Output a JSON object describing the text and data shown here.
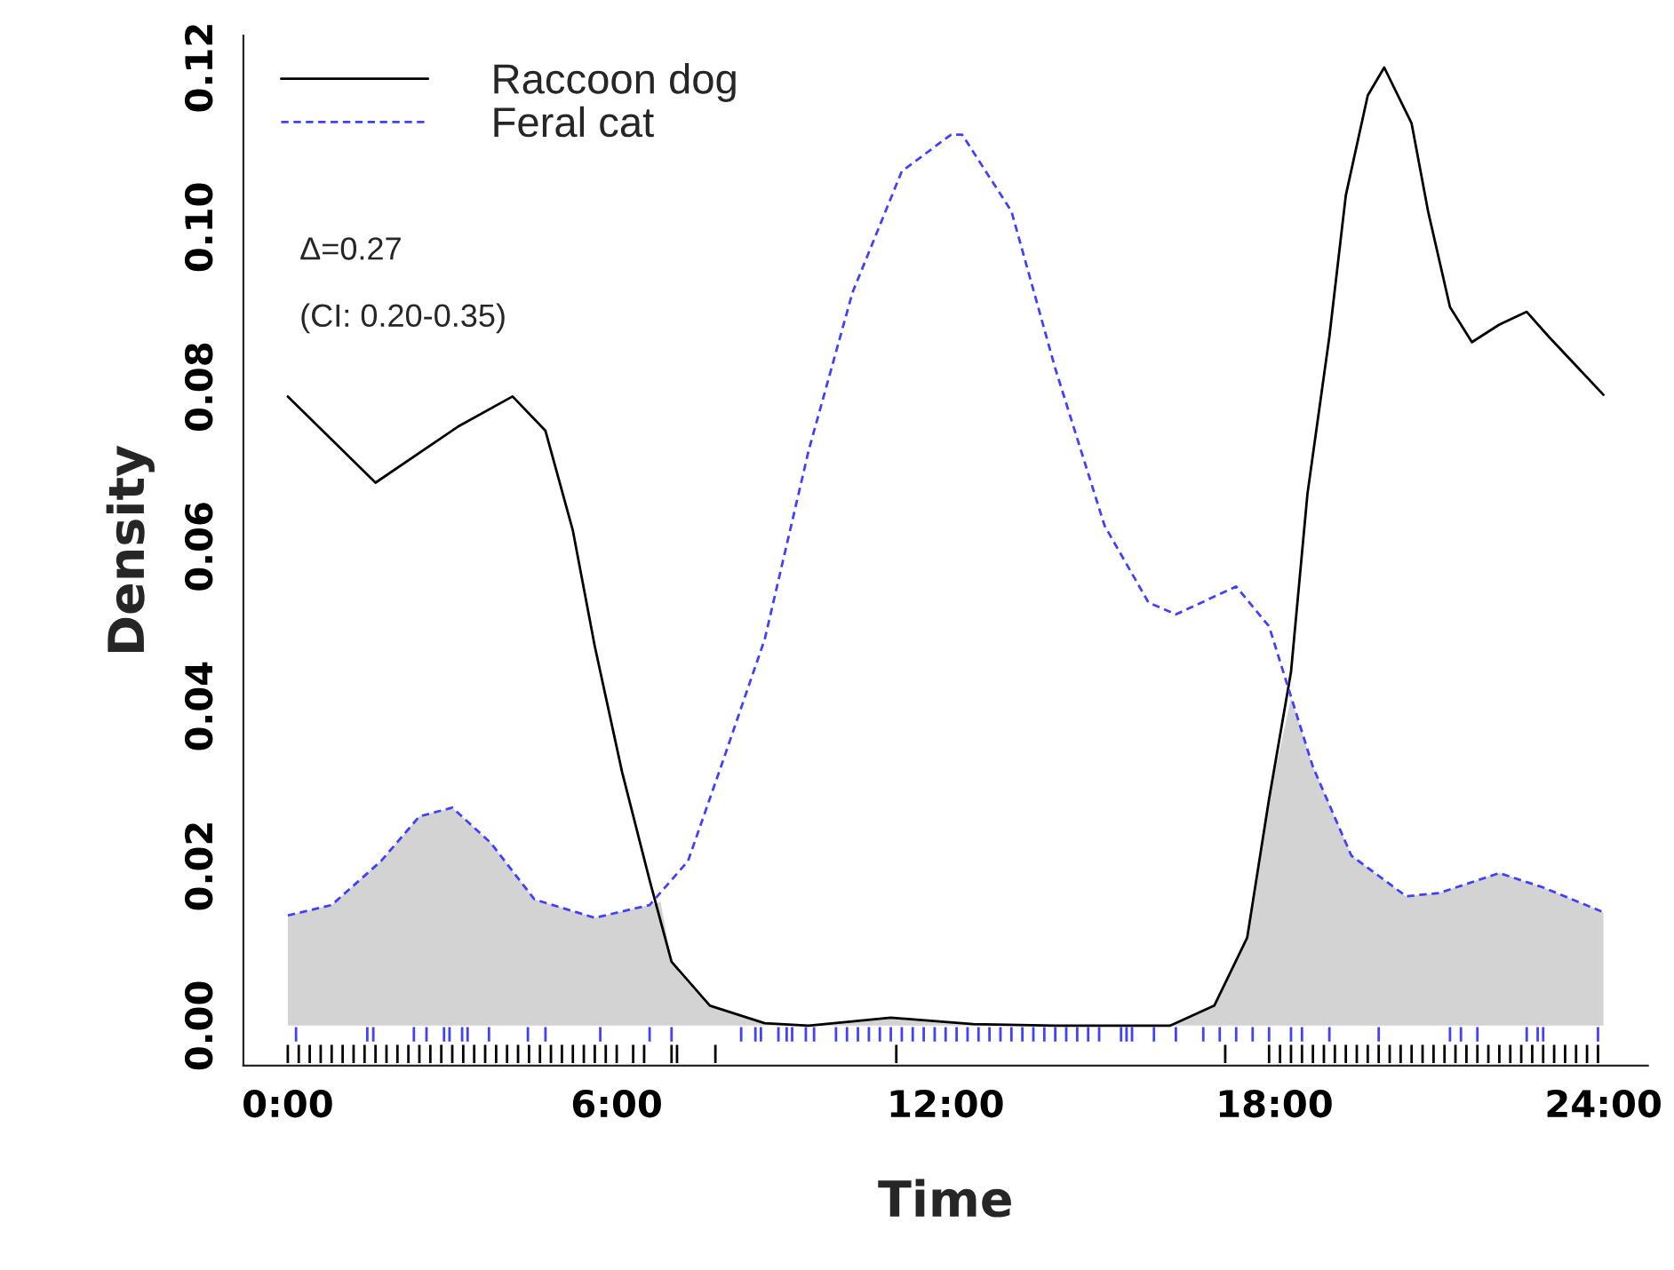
{
  "chart_data": {
    "type": "line",
    "xlabel": "Time",
    "ylabel": "Density",
    "xlim": [
      -0.81,
      24.81
    ],
    "ylim": [
      -0.005,
      0.124
    ],
    "xticks": [
      {
        "value": 0,
        "label": "0:00"
      },
      {
        "value": 6,
        "label": "6:00"
      },
      {
        "value": 12,
        "label": "12:00"
      },
      {
        "value": 18,
        "label": "18:00"
      },
      {
        "value": 24,
        "label": "24:00"
      }
    ],
    "yticks": [
      {
        "value": 0,
        "label": "0.00"
      },
      {
        "value": 0.02,
        "label": "0.02"
      },
      {
        "value": 0.04,
        "label": "0.04"
      },
      {
        "value": 0.06,
        "label": "0.06"
      },
      {
        "value": 0.08,
        "label": "0.08"
      },
      {
        "value": 0.1,
        "label": "0.10"
      },
      {
        "value": 0.12,
        "label": "0.12"
      }
    ],
    "legend": "top left",
    "grid": false,
    "annotations": [
      "Δ=0.27",
      "(CI: 0.20-0.35)"
    ],
    "series": [
      {
        "type": "area",
        "color": "#d3d3d3",
        "x": [
          0,
          0.8,
          1.7,
          2.4,
          3.0,
          3.7,
          4.5,
          5.6,
          6.6,
          6.8,
          7.0,
          7.7,
          8.7,
          9.5,
          11,
          12.5,
          14,
          16.1,
          16.9,
          17.5,
          17.9,
          18.3,
          18.7,
          19.4,
          20.4,
          21.0,
          22.1,
          22.9,
          24.0
        ],
        "values": [
          0.0138,
          0.0151,
          0.0206,
          0.0262,
          0.0273,
          0.0229,
          0.0158,
          0.0135,
          0.0151,
          0.0155,
          0.008,
          0.0025,
          0.0003,
          0,
          0.001,
          0.0002,
          0,
          0,
          0.0025,
          0.011,
          0.0284,
          0.041,
          0.0324,
          0.0213,
          0.0162,
          0.0166,
          0.0191,
          0.0173,
          0.0142
        ]
      },
      {
        "type": "line",
        "name": "Raccoon dog",
        "color": "#000000",
        "line_style": "solid",
        "x": [
          0,
          1.6,
          3.1,
          4.1,
          4.7,
          5.2,
          5.6,
          6.1,
          6.6,
          7.0,
          7.7,
          8.7,
          9.5,
          11,
          12.5,
          14,
          16.1,
          16.9,
          17.5,
          17.9,
          18.3,
          18.6,
          19.0,
          19.3,
          19.7,
          20.0,
          20.5,
          20.8,
          21.2,
          21.6,
          22.1,
          22.6,
          23.0,
          24.0
        ],
        "values": [
          0.0788,
          0.068,
          0.075,
          0.0788,
          0.0745,
          0.062,
          0.0475,
          0.0317,
          0.0182,
          0.008,
          0.0025,
          0.0003,
          0,
          0.001,
          0.0002,
          0,
          0,
          0.0025,
          0.011,
          0.0284,
          0.0443,
          0.0666,
          0.0863,
          0.104,
          0.1165,
          0.12,
          0.113,
          0.102,
          0.09,
          0.0856,
          0.0878,
          0.0894,
          0.0863,
          0.079
        ]
      },
      {
        "type": "line",
        "name": "Feral cat",
        "color": "#4040ff",
        "line_style": "dashed",
        "x": [
          0,
          0.8,
          1.7,
          2.4,
          3.0,
          3.7,
          4.5,
          5.6,
          6.6,
          7.3,
          7.9,
          8.7,
          9.5,
          10.3,
          11.2,
          12.1,
          12.3,
          13.2,
          14.0,
          14.9,
          15.7,
          16.2,
          17.3,
          17.9,
          18.7,
          19.4,
          20.4,
          21.0,
          22.1,
          22.9,
          24.0
        ],
        "values": [
          0.0138,
          0.0151,
          0.0206,
          0.0262,
          0.0273,
          0.0229,
          0.0158,
          0.0135,
          0.0151,
          0.0206,
          0.0324,
          0.0484,
          0.072,
          0.0918,
          0.107,
          0.1116,
          0.1116,
          0.102,
          0.0823,
          0.0626,
          0.053,
          0.0515,
          0.055,
          0.05,
          0.0324,
          0.0213,
          0.0162,
          0.0166,
          0.0191,
          0.0173,
          0.0142
        ]
      },
      {
        "type": "bar",
        "color": "#4040ff",
        "base": [
          -0.002,
          -0.002,
          -0.002,
          -0.002,
          -0.002,
          -0.002,
          -0.002,
          -0.002,
          -0.002,
          -0.002,
          -0.002,
          -0.002,
          -0.002,
          -0.002,
          -0.002,
          -0.002,
          -0.002,
          -0.002,
          -0.002,
          -0.002,
          -0.002,
          -0.002,
          -0.002,
          -0.002,
          -0.002,
          -0.002,
          -0.002,
          -0.002,
          -0.002,
          -0.002,
          -0.002,
          -0.002,
          -0.002,
          -0.002,
          -0.002,
          -0.002,
          -0.002,
          -0.002,
          -0.002,
          -0.002,
          -0.002,
          -0.002,
          -0.002,
          -0.002,
          -0.002,
          -0.002,
          -0.002,
          -0.002,
          -0.002,
          -0.002,
          -0.002,
          -0.002,
          -0.002,
          -0.002,
          -0.002,
          -0.002,
          -0.002,
          -0.002,
          -0.002,
          -0.002,
          -0.002,
          -0.002,
          -0.002,
          -0.002,
          -0.002,
          -0.002,
          -0.002,
          -0.002,
          -0.002
        ],
        "x": [
          0.15,
          1.45,
          1.56,
          2.3,
          2.53,
          2.85,
          2.95,
          3.18,
          3.28,
          3.67,
          4.38,
          4.7,
          5.7,
          6.6,
          7.0,
          8.27,
          8.53,
          8.63,
          8.95,
          9.1,
          9.2,
          9.45,
          9.6,
          10.0,
          10.2,
          10.4,
          10.6,
          10.8,
          11.0,
          11.2,
          11.4,
          11.6,
          11.8,
          12.0,
          12.2,
          12.4,
          12.6,
          12.8,
          13.0,
          13.2,
          13.4,
          13.6,
          13.8,
          14.0,
          14.2,
          14.4,
          14.6,
          14.8,
          15.2,
          15.3,
          15.4,
          15.8,
          16.2,
          16.7,
          17.0,
          17.3,
          17.6,
          17.9,
          18.3,
          18.5,
          19.0,
          19.9,
          21.2,
          21.4,
          21.7,
          22.6,
          22.8,
          22.9,
          23.9
        ],
        "values": [
          0.0018,
          0.0018,
          0.0018,
          0.0018,
          0.0018,
          0.0018,
          0.0018,
          0.0018,
          0.0018,
          0.0018,
          0.0018,
          0.0018,
          0.0018,
          0.0018,
          0.0018,
          0.0018,
          0.0018,
          0.0018,
          0.0018,
          0.0018,
          0.0018,
          0.0018,
          0.0018,
          0.0018,
          0.0018,
          0.0018,
          0.0018,
          0.0018,
          0.0018,
          0.0018,
          0.0018,
          0.0018,
          0.0018,
          0.0018,
          0.0018,
          0.0018,
          0.0018,
          0.0018,
          0.0018,
          0.0018,
          0.0018,
          0.0018,
          0.0018,
          0.0018,
          0.0018,
          0.0018,
          0.0018,
          0.0018,
          0.0018,
          0.0018,
          0.0018,
          0.0018,
          0.0018,
          0.0018,
          0.0018,
          0.0018,
          0.0018,
          0.0018,
          0.0018,
          0.0018,
          0.0018,
          0.0018,
          0.0018,
          0.0018,
          0.0018,
          0.0018,
          0.0018,
          0.0018,
          0.0018
        ]
      },
      {
        "type": "bar",
        "color": "#000000",
        "base": [
          -0.0047,
          -0.0047,
          -0.0047,
          -0.0047,
          -0.0047,
          -0.0047,
          -0.0047,
          -0.0047,
          -0.0047,
          -0.0047,
          -0.0047,
          -0.0047,
          -0.0047,
          -0.0047,
          -0.0047,
          -0.0047,
          -0.0047,
          -0.0047,
          -0.0047,
          -0.0047,
          -0.0047,
          -0.0047,
          -0.0047,
          -0.0047,
          -0.0047,
          -0.0047,
          -0.0047,
          -0.0047,
          -0.0047,
          -0.0047,
          -0.0047,
          -0.0047,
          -0.0047,
          -0.0047,
          -0.0047,
          -0.0047,
          -0.0047,
          -0.0047,
          -0.0047,
          -0.0047,
          -0.0047,
          -0.0047,
          -0.0047,
          -0.0047,
          -0.0047,
          -0.0047,
          -0.0047,
          -0.0047,
          -0.0047,
          -0.0047,
          -0.0047,
          -0.0047,
          -0.0047,
          -0.0047,
          -0.0047,
          -0.0047,
          -0.0047,
          -0.0047,
          -0.0047,
          -0.0047,
          -0.0047,
          -0.0047,
          -0.0047,
          -0.0047,
          -0.0047,
          -0.0047,
          -0.0047,
          -0.0047,
          -0.0047
        ],
        "x": [
          0,
          0.2,
          0.4,
          0.6,
          0.8,
          1.0,
          1.2,
          1.4,
          1.6,
          1.8,
          2.0,
          2.2,
          2.4,
          2.6,
          2.8,
          3.0,
          3.2,
          3.4,
          3.6,
          3.8,
          4.0,
          4.2,
          4.4,
          4.6,
          4.8,
          5.0,
          5.2,
          5.4,
          5.6,
          5.8,
          6.0,
          6.3,
          6.5,
          7.0,
          7.1,
          7.8,
          11.1,
          17.1,
          17.9,
          18.1,
          18.3,
          18.5,
          18.7,
          18.9,
          19.1,
          19.3,
          19.5,
          19.7,
          19.9,
          20.1,
          20.3,
          20.5,
          20.7,
          20.9,
          21.1,
          21.3,
          21.5,
          21.7,
          21.9,
          22.1,
          22.3,
          22.5,
          22.7,
          22.9,
          23.1,
          23.3,
          23.5,
          23.7,
          23.9
        ],
        "values": [
          0.0023,
          0.0023,
          0.0023,
          0.0023,
          0.0023,
          0.0023,
          0.0023,
          0.0023,
          0.0023,
          0.0023,
          0.0023,
          0.0023,
          0.0023,
          0.0023,
          0.0023,
          0.0023,
          0.0023,
          0.0023,
          0.0023,
          0.0023,
          0.0023,
          0.0023,
          0.0023,
          0.0023,
          0.0023,
          0.0023,
          0.0023,
          0.0023,
          0.0023,
          0.0023,
          0.0023,
          0.0023,
          0.0023,
          0.0023,
          0.0023,
          0.0023,
          0.0023,
          0.0023,
          0.0023,
          0.0023,
          0.0023,
          0.0023,
          0.0023,
          0.0023,
          0.0023,
          0.0023,
          0.0023,
          0.0023,
          0.0023,
          0.0023,
          0.0023,
          0.0023,
          0.0023,
          0.0023,
          0.0023,
          0.0023,
          0.0023,
          0.0023,
          0.0023,
          0.0023,
          0.0023,
          0.0023,
          0.0023,
          0.0023,
          0.0023,
          0.0023,
          0.0023,
          0.0023,
          0.0023
        ]
      }
    ]
  }
}
